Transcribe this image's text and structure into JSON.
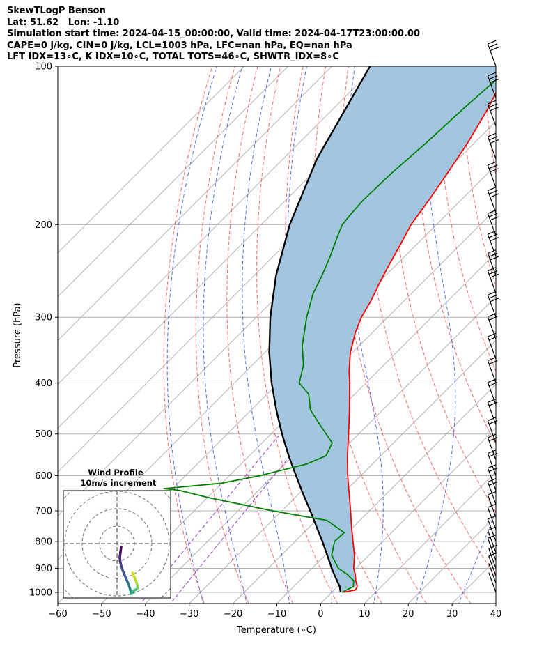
{
  "header": {
    "title": "SkewTLogP Benson",
    "location": "Lat: 51.62   Lon: -1.10",
    "times": "Simulation start time: 2024-04-15_00:00:00, Valid time: 2024-04-17T23:00:00.00",
    "indices1": "CAPE=0 j/kg, CIN=0 j/kg, LCL=1003 hPa, LFC=nan hPa, EQ=nan hPa",
    "indices2": "LFT IDX=13∘C, K IDX=10∘C, TOTAL TOTS=46∘C, SHWTR_IDX=8∘C"
  },
  "chart_data": {
    "type": "line",
    "subtype": "skew-t log-p",
    "xlabel": "Temperature (∘C)",
    "ylabel": "Pressure (hPa)",
    "xlim": [
      -60,
      40
    ],
    "ylim": [
      1050,
      100
    ],
    "x_ticks": [
      -60,
      -50,
      -40,
      -30,
      -20,
      -10,
      0,
      10,
      20,
      30,
      40
    ],
    "x_tick_labels": [
      "−60",
      "−50",
      "−40",
      "−30",
      "−20",
      "−10",
      "0",
      "10",
      "20",
      "30",
      "40"
    ],
    "y_ticks": [
      1000,
      900,
      800,
      700,
      600,
      500,
      400,
      300,
      200,
      100
    ],
    "y_scale": "log",
    "grid": true,
    "colors": {
      "temperature": "#ff0000",
      "dewpoint": "#008000",
      "parcel": "#000000",
      "shading": "#a3c6e0",
      "dry_adiabats": "#ff6666",
      "moist_adiabats": "#5b6cf0",
      "isotherms": "#aaaaaa",
      "mixing_ratio": "#9932cc"
    },
    "series": [
      {
        "pressure": [
          1000,
          990,
          975,
          950,
          925,
          900,
          850,
          800,
          750,
          700,
          650,
          600,
          550,
          500,
          450,
          400,
          380,
          350,
          320,
          300,
          280,
          260,
          240,
          220,
          200,
          180,
          160,
          140,
          120,
          100
        ],
        "values": [
          2.5,
          4.8,
          4.5,
          2.8,
          1.3,
          -0.5,
          -3.3,
          -6.8,
          -10.5,
          -14.3,
          -18.5,
          -23.0,
          -27.6,
          -32.3,
          -37.6,
          -43.7,
          -46.5,
          -50.5,
          -54.0,
          -56.0,
          -57.5,
          -59.5,
          -61.5,
          -63.5,
          -65.8,
          -67.3,
          -69.2,
          -71.5,
          -74.8,
          -79.5
        ]
      },
      {
        "pressure": [
          1000,
          990,
          975,
          950,
          925,
          900,
          850,
          800,
          770,
          730,
          700,
          680,
          660,
          640,
          635,
          620,
          600,
          570,
          550,
          520,
          480,
          450,
          420,
          400,
          370,
          340,
          300,
          270,
          250,
          230,
          210,
          200,
          190,
          180,
          160,
          140,
          120,
          100
        ],
        "values": [
          2.3,
          2.8,
          3.6,
          2.3,
          -0.5,
          -4.0,
          -8.5,
          -11.0,
          -10.8,
          -17.5,
          -32.0,
          -41.0,
          -50.0,
          -58.0,
          -62.0,
          -50.0,
          -43.0,
          -35.0,
          -32.5,
          -34.0,
          -41.0,
          -46.5,
          -50.5,
          -55.2,
          -58.3,
          -63.0,
          -68.5,
          -72.5,
          -74.5,
          -77.0,
          -80.0,
          -81.5,
          -82.0,
          -82.3,
          -82.0,
          -81.0,
          -80.3,
          -79.0
        ]
      },
      {
        "pressure": [
          1000,
          975,
          950,
          925,
          900,
          850,
          800,
          750,
          700,
          650,
          600,
          550,
          500,
          450,
          400,
          350,
          300,
          250,
          200,
          150,
          100
        ],
        "values": [
          2.0,
          0.5,
          -1.5,
          -3.5,
          -5.5,
          -9.5,
          -13.8,
          -18.5,
          -23.5,
          -29.0,
          -34.8,
          -41.0,
          -47.5,
          -54.3,
          -61.5,
          -69.0,
          -76.8,
          -85.0,
          -93.5,
          -102.3,
          -111.3
        ]
      }
    ],
    "wind_barbs_pressure": [
      1000,
      960,
      930,
      900,
      870,
      840,
      800,
      760,
      720,
      680,
      640,
      600,
      560,
      520,
      480,
      440,
      400,
      360,
      330,
      300,
      270,
      250,
      230,
      210,
      190,
      170,
      150,
      130,
      115,
      100
    ],
    "inset": {
      "title": "Wind Profile",
      "subtitle": "10m/s increment"
    }
  }
}
